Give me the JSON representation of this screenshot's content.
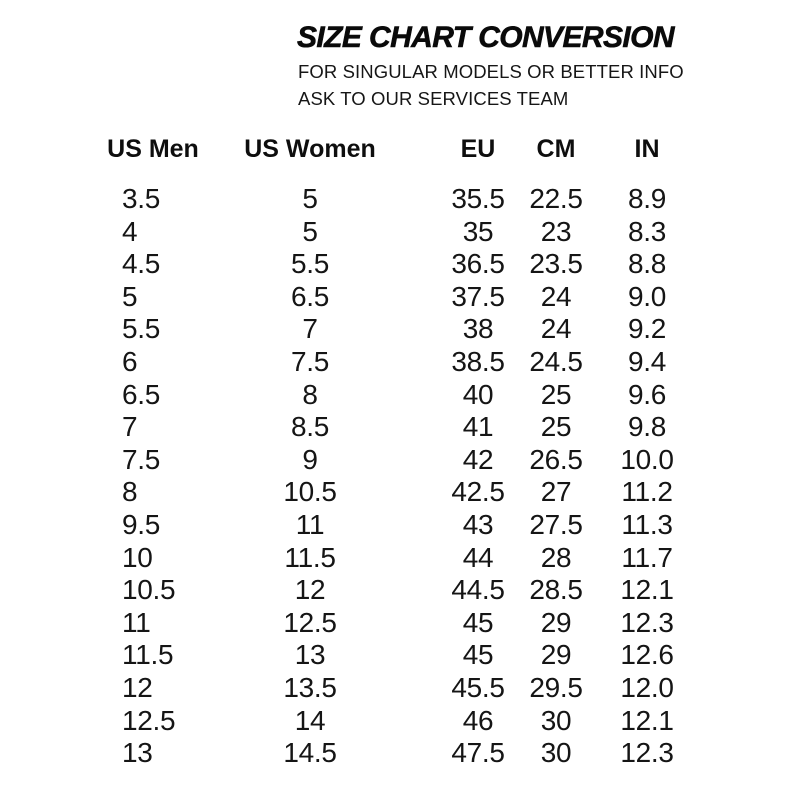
{
  "header": {
    "title": "SIZE CHART CONVERSION",
    "subtitle_line1": "FOR SINGULAR MODELS OR BETTER INFO",
    "subtitle_line2": "ASK TO OUR SERVICES TEAM"
  },
  "colors": {
    "text": "#121212",
    "background": "#ffffff"
  },
  "chart_data": {
    "type": "table",
    "title": "SIZE CHART CONVERSION",
    "columns": [
      "US Men",
      "US Women",
      "EU",
      "CM",
      "IN"
    ],
    "rows": [
      [
        "3.5",
        "5",
        "35.5",
        "22.5",
        "8.9"
      ],
      [
        "4",
        "5",
        "35",
        "23",
        "8.3"
      ],
      [
        "4.5",
        "5.5",
        "36.5",
        "23.5",
        "8.8"
      ],
      [
        "5",
        "6.5",
        "37.5",
        "24",
        "9.0"
      ],
      [
        "5.5",
        "7",
        "38",
        "24",
        "9.2"
      ],
      [
        "6",
        "7.5",
        "38.5",
        "24.5",
        "9.4"
      ],
      [
        "6.5",
        "8",
        "40",
        "25",
        "9.6"
      ],
      [
        "7",
        "8.5",
        "41",
        "25",
        "9.8"
      ],
      [
        "7.5",
        "9",
        "42",
        "26.5",
        "10.0"
      ],
      [
        "8",
        "10.5",
        "42.5",
        "27",
        "11.2"
      ],
      [
        "9.5",
        "11",
        "43",
        "27.5",
        "11.3"
      ],
      [
        "10",
        "11.5",
        "44",
        "28",
        "11.7"
      ],
      [
        "10.5",
        "12",
        "44.5",
        "28.5",
        "12.1"
      ],
      [
        "11",
        "12.5",
        "45",
        "29",
        "12.3"
      ],
      [
        "11.5",
        "13",
        "45",
        "29",
        "12.6"
      ],
      [
        "12",
        "13.5",
        "45.5",
        "29.5",
        "12.0"
      ],
      [
        "12.5",
        "14",
        "46",
        "30",
        "12.1"
      ],
      [
        "13",
        "14.5",
        "47.5",
        "30",
        "12.3"
      ]
    ]
  }
}
